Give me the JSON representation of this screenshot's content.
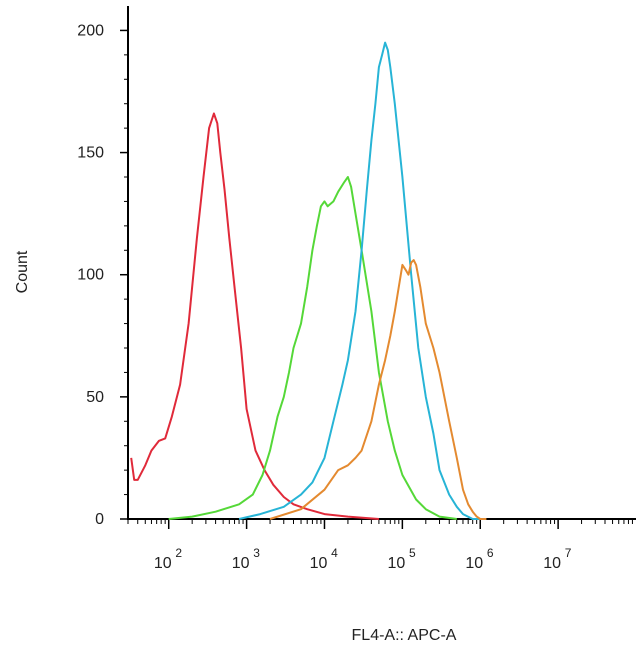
{
  "chart_data": {
    "type": "line",
    "title": "",
    "xlabel": "FL4-A:: APC-A",
    "ylabel": "Count",
    "xscale": "log",
    "xlim": [
      30,
      100000000
    ],
    "ylim": [
      0,
      210
    ],
    "grid": false,
    "legend": "none",
    "y_ticks": [
      0,
      50,
      100,
      150,
      200
    ],
    "x_ticks": [
      {
        "value": 100,
        "base": "10",
        "exp": "2"
      },
      {
        "value": 1000,
        "base": "10",
        "exp": "3"
      },
      {
        "value": 10000,
        "base": "10",
        "exp": "4"
      },
      {
        "value": 100000,
        "base": "10",
        "exp": "5"
      },
      {
        "value": 1000000,
        "base": "10",
        "exp": "6"
      },
      {
        "value": 10000000,
        "base": "10",
        "exp": "7"
      }
    ],
    "series": [
      {
        "color": "#e02a3a",
        "x": [
          33,
          36,
          40,
          50,
          60,
          75,
          90,
          110,
          140,
          180,
          230,
          280,
          330,
          380,
          420,
          460,
          520,
          600,
          700,
          850,
          1000,
          1300,
          1700,
          2200,
          3000,
          4000,
          6000,
          10000,
          20000,
          50000
        ],
        "y": [
          25,
          16,
          16,
          22,
          28,
          32,
          33,
          42,
          55,
          80,
          115,
          140,
          160,
          166,
          162,
          150,
          135,
          115,
          95,
          70,
          45,
          28,
          20,
          14,
          9,
          6,
          4,
          2,
          1,
          0
        ]
      },
      {
        "color": "#55d838",
        "x": [
          100,
          200,
          400,
          800,
          1200,
          1600,
          2000,
          2500,
          3000,
          3500,
          4000,
          5000,
          6000,
          7000,
          8000,
          9000,
          10000,
          11000,
          13000,
          15000,
          18000,
          20000,
          22000,
          25000,
          30000,
          40000,
          50000,
          65000,
          80000,
          100000,
          150000,
          200000,
          300000,
          500000
        ],
        "y": [
          0,
          1,
          3,
          6,
          10,
          18,
          28,
          42,
          50,
          60,
          70,
          80,
          95,
          110,
          120,
          128,
          130,
          128,
          130,
          134,
          138,
          140,
          136,
          125,
          110,
          85,
          60,
          40,
          28,
          18,
          8,
          4,
          1,
          0
        ]
      },
      {
        "color": "#27b4d6",
        "x": [
          800,
          1500,
          3000,
          5000,
          7000,
          10000,
          13000,
          17000,
          20000,
          25000,
          30000,
          35000,
          40000,
          45000,
          50000,
          55000,
          60000,
          65000,
          70000,
          80000,
          100000,
          130000,
          160000,
          200000,
          250000,
          300000,
          400000,
          500000,
          600000,
          800000,
          1000000
        ],
        "y": [
          0,
          2,
          5,
          10,
          15,
          25,
          40,
          55,
          65,
          85,
          110,
          135,
          155,
          170,
          185,
          190,
          195,
          192,
          185,
          170,
          140,
          100,
          70,
          50,
          35,
          20,
          10,
          5,
          2,
          0,
          0
        ]
      },
      {
        "color": "#e48a30",
        "x": [
          2000,
          5000,
          10000,
          15000,
          20000,
          25000,
          30000,
          40000,
          50000,
          60000,
          70000,
          80000,
          90000,
          100000,
          110000,
          120000,
          130000,
          140000,
          150000,
          170000,
          200000,
          250000,
          300000,
          400000,
          500000,
          600000,
          700000,
          800000,
          900000,
          1000000,
          1200000
        ],
        "y": [
          0,
          4,
          12,
          20,
          22,
          25,
          28,
          40,
          55,
          65,
          75,
          85,
          95,
          104,
          102,
          100,
          105,
          106,
          104,
          95,
          80,
          70,
          60,
          40,
          25,
          12,
          6,
          3,
          1,
          0,
          0
        ]
      }
    ]
  }
}
